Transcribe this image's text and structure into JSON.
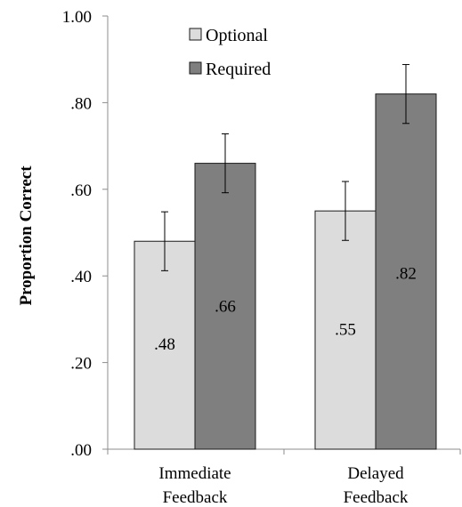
{
  "chart_data": {
    "type": "bar",
    "title": "",
    "xlabel": "",
    "ylabel": "Proportion Correct",
    "ylim": [
      0,
      1
    ],
    "yticks": [
      ".00",
      ".20",
      ".40",
      ".60",
      ".80",
      "1.00"
    ],
    "categories": [
      [
        "Immediate",
        "Feedback"
      ],
      [
        "Delayed",
        "Feedback"
      ]
    ],
    "series": [
      {
        "name": "Optional",
        "values": [
          0.48,
          0.55
        ],
        "errors": [
          0.068,
          0.068
        ],
        "labels": [
          ".48",
          ".55"
        ],
        "color": "#dcdcdc"
      },
      {
        "name": "Required",
        "values": [
          0.66,
          0.82
        ],
        "errors": [
          0.068,
          0.068
        ],
        "labels": [
          ".66",
          ".82"
        ],
        "color": "#7f7f7f"
      }
    ],
    "legend_position": "top-left inside plot",
    "grid": false,
    "error_bars": true
  }
}
